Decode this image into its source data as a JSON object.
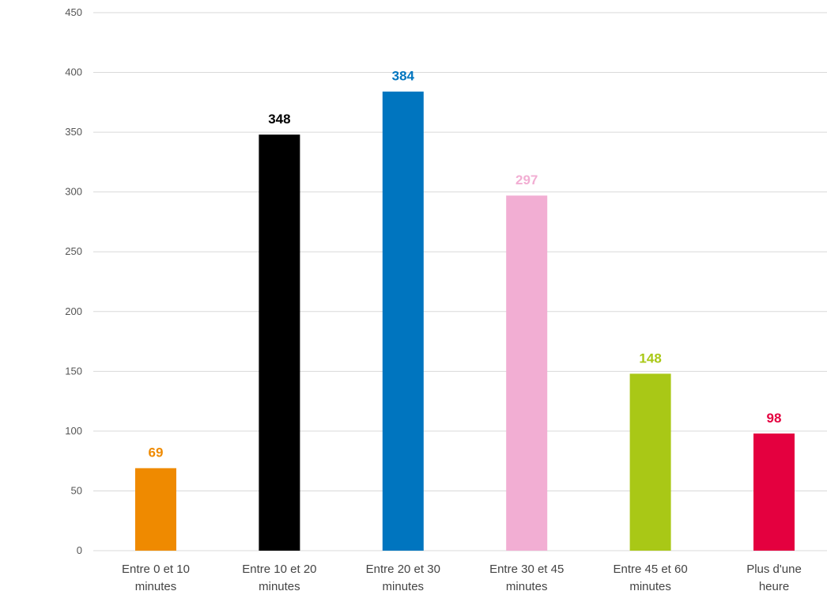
{
  "chart_data": {
    "type": "bar",
    "title": "",
    "xlabel": "",
    "ylabel": "",
    "ylim": [
      0,
      450
    ],
    "yticks": [
      0,
      50,
      100,
      150,
      200,
      250,
      300,
      350,
      400,
      450
    ],
    "grid": true,
    "legend": "none",
    "categories": [
      [
        "Entre 0 et 10",
        "minutes"
      ],
      [
        "Entre 10 et 20",
        "minutes"
      ],
      [
        "Entre 20 et 30",
        "minutes"
      ],
      [
        "Entre 30 et 45",
        "minutes"
      ],
      [
        "Entre 45 et 60",
        "minutes"
      ],
      [
        "Plus d'une",
        "heure"
      ]
    ],
    "values": [
      69,
      348,
      384,
      297,
      148,
      98
    ],
    "colors": [
      "#ef8a00",
      "#000000",
      "#0075bf",
      "#f2aed3",
      "#a9c816",
      "#e4003f"
    ]
  }
}
